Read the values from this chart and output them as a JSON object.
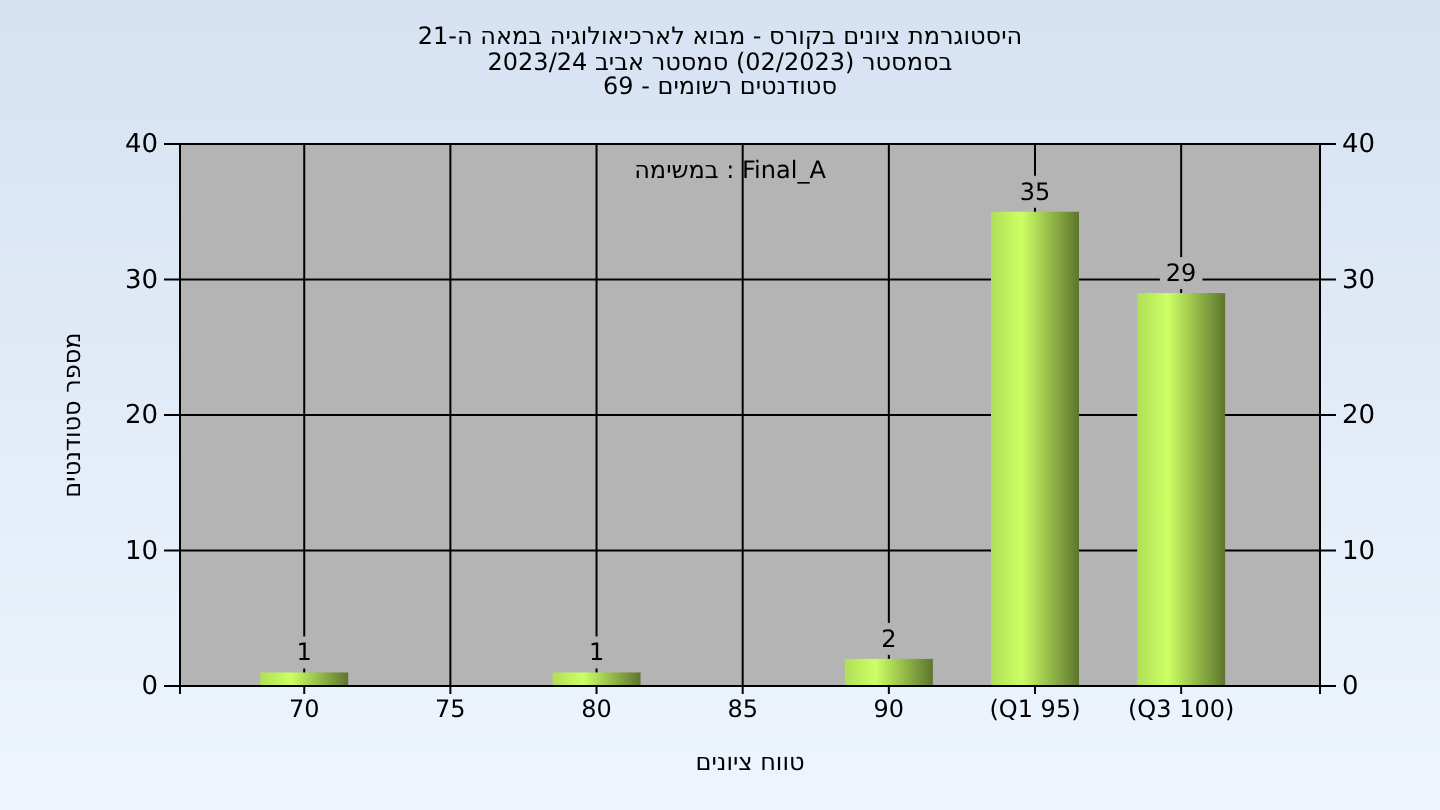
{
  "chart_data": {
    "type": "bar",
    "title": "היסטוגרמת ציונים בקורס - מבוא לארכיאולוגיה במאה ה-21",
    "subtitle": "בסמסטר  (02/2023)  סמסטר אביב 2023/24\nסטודנטים רשומים - 69",
    "xlabel": "טווח ציונים",
    "ylabel": "מספר סטודנטים",
    "annotations": [
      "במשימה : Final_A"
    ],
    "categories": [
      "70",
      "75",
      "80",
      "85",
      "90",
      "(Q1 95)",
      "(Q3 100)"
    ],
    "values": [
      1,
      0,
      1,
      0,
      2,
      35,
      29
    ],
    "value_labels": [
      "1",
      null,
      "1",
      null,
      "2",
      "35",
      "29"
    ],
    "color": "#8fb446",
    "ylim": [
      0,
      40
    ],
    "yticks": [
      0,
      10,
      20,
      30,
      40
    ],
    "y2lim": [
      0,
      40
    ],
    "y2ticks": [
      0,
      10,
      20,
      30,
      40
    ],
    "grid": true
  }
}
